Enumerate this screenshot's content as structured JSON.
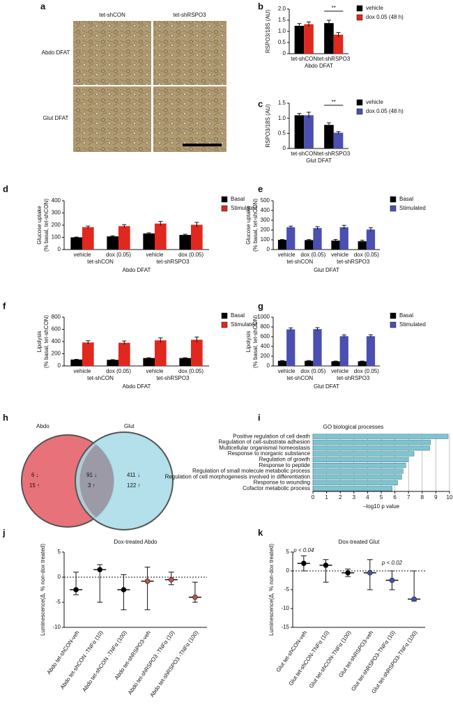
{
  "image_panel": {
    "label": "a",
    "columns": [
      "tet-shCON",
      "tet-shRSPO3"
    ],
    "rows": [
      "Abdo DFAT",
      "Glut DFAT"
    ]
  },
  "venn": {
    "label": "h",
    "sets": [
      "Abdo",
      "Glut"
    ],
    "left": [
      "6 ↓",
      "15 ↑"
    ],
    "middle": [
      "91 ↓",
      "3 ↑"
    ],
    "right": [
      "411 ↓",
      "122 ↑"
    ]
  },
  "chart_data": [
    {
      "type": "bar",
      "label": "b",
      "ylabel": [
        "RSPO3/18S (AU)"
      ],
      "xlabel": "Abdo DFAT",
      "categories": [
        "tet-shCON",
        "tet-shRSPO3"
      ],
      "series": [
        {
          "name": "vehicle",
          "color": "#000000",
          "values": [
            1.25,
            1.37
          ],
          "errors": [
            0.1,
            0.13
          ]
        },
        {
          "name": "dox 0.05 (48 h)",
          "color": "#e0281e",
          "values": [
            1.32,
            0.85
          ],
          "errors": [
            0.1,
            0.1
          ]
        }
      ],
      "ylim": [
        0,
        2
      ],
      "yticks": [
        0,
        0.5,
        {
          "value": 1,
          "label": "1.0"
        },
        1.5,
        {
          "value": 2,
          "label": "2.0"
        }
      ],
      "annotations": [
        "**"
      ]
    },
    {
      "type": "bar",
      "label": "c",
      "ylabel": [
        "RSPO3/18S (AU)"
      ],
      "xlabel": "Glut DFAT",
      "categories": [
        "tet-shCON",
        "tet-shRSPO3"
      ],
      "series": [
        {
          "name": "vehicle",
          "color": "#000000",
          "values": [
            1.1,
            0.78
          ],
          "errors": [
            0.06,
            0.07
          ]
        },
        {
          "name": "dox 0.05 (48 h)",
          "color": "#4a4fb0",
          "values": [
            1.1,
            0.52
          ],
          "errors": [
            0.1,
            0.04
          ]
        }
      ],
      "ylim": [
        0,
        1.5
      ],
      "yticks": [
        0,
        0.5,
        {
          "value": 1,
          "label": "1.0"
        },
        1.5
      ],
      "annotations": [
        "**"
      ]
    },
    {
      "type": "bar",
      "label": "d",
      "ylabel": [
        "Glucose uptake",
        "(% basal, tet-shCON)"
      ],
      "xlabel": "Abdo DFAT",
      "categories": [
        "vehicle",
        "dox (0.05)",
        "vehicle",
        "dox (0.05)"
      ],
      "group_labels": [
        "tet-shCON",
        "tet-shRSPO3"
      ],
      "series": [
        {
          "name": "Basal",
          "color": "#000000",
          "values": [
            100,
            108,
            132,
            120
          ],
          "errors": [
            2,
            5,
            5,
            6
          ]
        },
        {
          "name": "Stimulated",
          "color": "#e0281e",
          "values": [
            183,
            192,
            213,
            203
          ],
          "errors": [
            10,
            12,
            18,
            20
          ]
        }
      ],
      "ylim": [
        0,
        400
      ],
      "yticks": [
        0,
        100,
        200,
        300,
        400
      ]
    },
    {
      "type": "bar",
      "label": "e",
      "ylabel": [
        "Glucose uptake",
        "(% basal, tet-shCON)"
      ],
      "xlabel": "Glut DFAT",
      "categories": [
        "vehicle",
        "dox (0.05)",
        "vehicle",
        "dox (0.05)"
      ],
      "group_labels": [
        "tet-shCON",
        "tet-shRSPO3"
      ],
      "series": [
        {
          "name": "Basal",
          "color": "#000000",
          "values": [
            100,
            97,
            92,
            85
          ],
          "errors": [
            3,
            5,
            12,
            10
          ]
        },
        {
          "name": "Stimulated",
          "color": "#4a4fb0",
          "values": [
            228,
            220,
            228,
            205
          ],
          "errors": [
            12,
            15,
            20,
            18
          ]
        }
      ],
      "ylim": [
        0,
        500
      ],
      "yticks": [
        0,
        100,
        200,
        300,
        400,
        500
      ]
    },
    {
      "type": "bar",
      "label": "f",
      "ylabel": [
        "Lipolysis",
        "(% basal, tet-shCON)"
      ],
      "xlabel": "Abdo DFAT",
      "categories": [
        "vehicle",
        "dox (0.05)",
        "vehicle",
        "dox (0.05)"
      ],
      "group_labels": [
        "tet-shCON",
        "tet-shRSPO3"
      ],
      "series": [
        {
          "name": "Basal",
          "color": "#000000",
          "values": [
            105,
            100,
            130,
            130
          ],
          "errors": [
            3,
            5,
            5,
            5
          ]
        },
        {
          "name": "Stimulated",
          "color": "#e0281e",
          "values": [
            385,
            380,
            420,
            430
          ],
          "errors": [
            30,
            30,
            40,
            45
          ]
        }
      ],
      "ylim": [
        0,
        800
      ],
      "yticks": [
        0,
        200,
        400,
        600,
        800
      ]
    },
    {
      "type": "bar",
      "label": "g",
      "ylabel": [
        "Lipolysis",
        "(% basal, tet-shCON)"
      ],
      "xlabel": "Glut DFAT",
      "categories": [
        "vehicle",
        "dox (0.05)",
        "vehicle",
        "dox (0.05)"
      ],
      "group_labels": [
        "tet-shCON",
        "tet-shRSPO3"
      ],
      "series": [
        {
          "name": "Basal",
          "color": "#000000",
          "values": [
            105,
            105,
            95,
            95
          ],
          "errors": [
            5,
            5,
            5,
            5
          ]
        },
        {
          "name": "Stimulated",
          "color": "#4a4fb0",
          "values": [
            750,
            755,
            610,
            610
          ],
          "errors": [
            30,
            30,
            25,
            30
          ]
        }
      ],
      "ylim": [
        0,
        1000
      ],
      "yticks": [
        0,
        200,
        400,
        600,
        800,
        1000
      ]
    },
    {
      "type": "hbar",
      "label": "i",
      "title": "GO biological processes",
      "xlabel": "−log10 p value",
      "color": "#7ec4d1",
      "categories": [
        "Positive regulation of cell death",
        "Regulation of cell-substrate adhesion",
        "Multicellular organismal homeostasis",
        "Response to inorganic substance",
        "Regulation of growth",
        "Response to peptide",
        "Regulation of small molecule metabolic process",
        "Regulation of cell morphogenesis involved in differentiation",
        "Response to wounding",
        "Cofactor metabolic process"
      ],
      "values": [
        9.9,
        8.6,
        8.55,
        7.4,
        7.0,
        6.8,
        6.6,
        6.5,
        6.2,
        5.8
      ],
      "xlim": [
        0,
        10
      ],
      "xticks": [
        0,
        1,
        2,
        3,
        4,
        5,
        6,
        7,
        8,
        9,
        10
      ]
    },
    {
      "type": "range",
      "label": "j",
      "title": "Dox-treated Abdo",
      "ylabel": [
        "Luminescence(Δ, % non-dox treated)"
      ],
      "categories": [
        "Abdo tet-shCON-veh",
        "Abdo tet-shCON -TNFα (10)",
        "Abdo tet-shCON -TNFα (100)",
        "Abdo tet-shRSPO3-veh",
        "Abdo tet-shRSPO3 -TNFα (10)",
        "Abdo tet-shRSPO3 -TNFα (100)"
      ],
      "colors": [
        "#000000",
        "#000000",
        "#000000",
        "#c0504d",
        "#c0504d",
        "#c0504d"
      ],
      "medians": [
        -2.5,
        1.5,
        -2.5,
        -0.8,
        -0.5,
        -4
      ],
      "lows": [
        -3.5,
        -5,
        -6.5,
        -6.5,
        -1.5,
        -5
      ],
      "highs": [
        1,
        2.5,
        0.5,
        2,
        1,
        -1
      ],
      "ylim": [
        -10,
        5
      ],
      "yticks": [
        -10,
        -5,
        0,
        5
      ]
    },
    {
      "type": "range",
      "label": "k",
      "title": "Dox-treated Glut",
      "ylabel": [
        "Luminescence(Δ, % non-dox treated)"
      ],
      "categories": [
        "Glut tet-shCON-veh",
        "Glut tet-shCON-TNFα (10)",
        "Glut tet-shCON-TNFα (100)",
        "Glut tet-shRSPO3-veh",
        "Glut tet-shRSPO3-TNFα (10)",
        "Glut tet-shRSPO3-TNFα (100)"
      ],
      "colors": [
        "#000000",
        "#000000",
        "#000000",
        "#4a4fb0",
        "#4a4fb0",
        "#4a4fb0"
      ],
      "medians": [
        2,
        1.5,
        -0.5,
        -0.5,
        -2.5,
        -7.5
      ],
      "lows": [
        0,
        -3,
        -1.5,
        -5,
        -5,
        -8
      ],
      "highs": [
        4,
        3,
        0.5,
        3,
        0,
        0
      ],
      "ylim": [
        -15,
        5
      ],
      "yticks": [
        -15,
        -10,
        -5,
        0,
        5
      ],
      "annotations": [
        "p < 0.04",
        "p < 0.02"
      ]
    }
  ]
}
